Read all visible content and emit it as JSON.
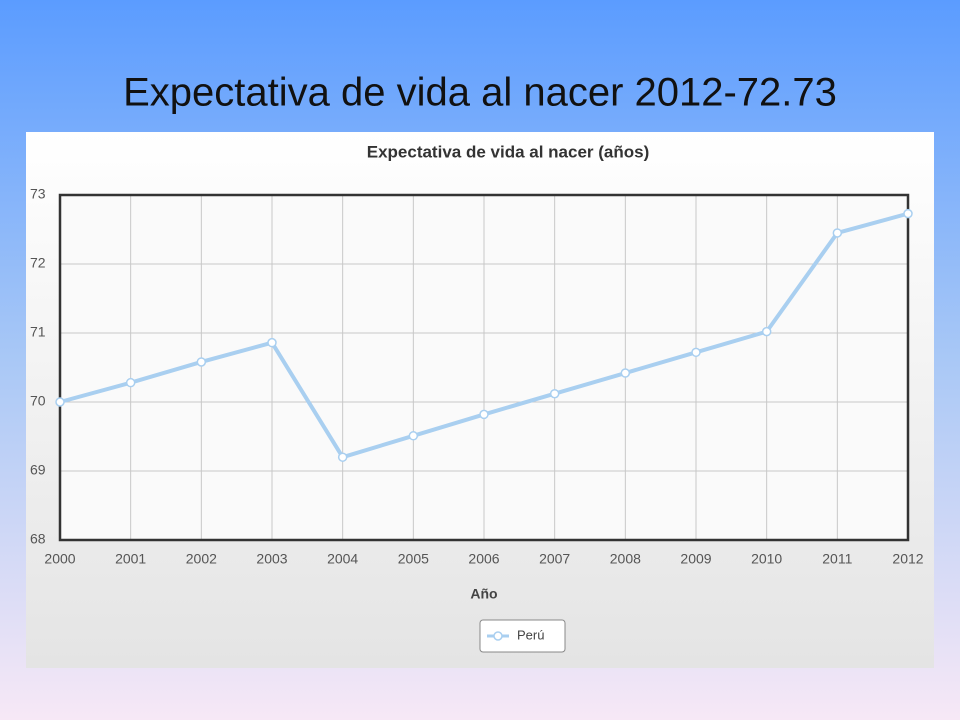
{
  "slide_title": "Expectativa de vida al nacer 2012-72.73",
  "chart_data": {
    "type": "line",
    "title": "Expectativa de vida al nacer (años)",
    "x_label": "Año",
    "x": [
      2000,
      2001,
      2002,
      2003,
      2004,
      2005,
      2006,
      2007,
      2008,
      2009,
      2010,
      2011,
      2012
    ],
    "series": [
      {
        "name": "Perú",
        "color": "#a9cff0",
        "values": [
          70.0,
          70.28,
          70.58,
          70.86,
          69.2,
          69.51,
          69.82,
          70.12,
          70.42,
          70.72,
          71.02,
          72.45,
          72.73
        ]
      }
    ],
    "xlim": [
      2000,
      2012
    ],
    "xticks": [
      2000,
      2001,
      2002,
      2003,
      2004,
      2005,
      2006,
      2007,
      2008,
      2009,
      2010,
      2011,
      2012
    ],
    "ylim": [
      68,
      73
    ],
    "yticks": [
      68,
      69,
      70,
      71,
      72,
      73
    ],
    "grid": true,
    "legend": "bottom"
  }
}
